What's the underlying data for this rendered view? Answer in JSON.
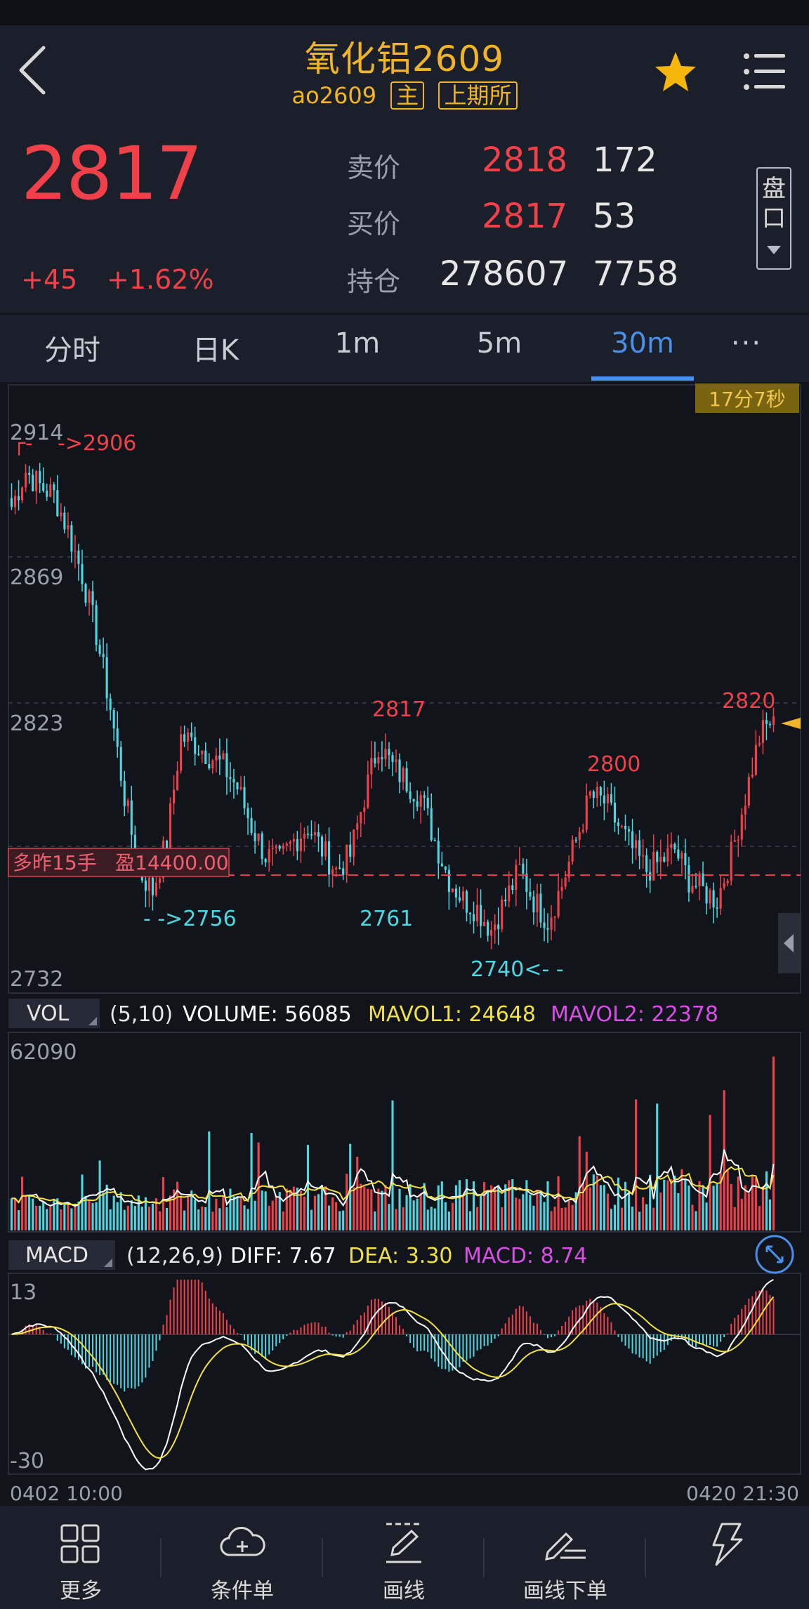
{
  "header": {
    "title": "氧化铝2609",
    "code": "ao2609",
    "tag_main": "主",
    "tag_exchange": "上期所"
  },
  "quote": {
    "last_price": "2817",
    "change": "+45",
    "change_pct": "+1.62%",
    "ask_label": "卖价",
    "ask_price": "2818",
    "ask_volume": "172",
    "bid_label": "买价",
    "bid_price": "2817",
    "bid_volume": "53",
    "oi_label": "持仓",
    "open_interest": "278607",
    "oi_change": "7758",
    "pankou_char1": "盘",
    "pankou_char2": "口"
  },
  "tabs": [
    {
      "label": "分时"
    },
    {
      "label": "日K"
    },
    {
      "label": "1m"
    },
    {
      "label": "5m"
    },
    {
      "label": "30m",
      "active": true
    },
    {
      "label": "···"
    }
  ],
  "kline": {
    "countdown": "17分7秒",
    "y_max_label": "2914",
    "y_mid1_label": "2869",
    "y_mid2_label": "2823",
    "y_min_label": "2732",
    "high_marker": "->2906",
    "low_marker_1": "- ->2756",
    "low_marker_2": "2761",
    "low_marker_3": "2740<- -",
    "peak_label_1": "2817",
    "peak_label_2": "2800",
    "peak_label_3": "2820",
    "position_label": "多昨15手",
    "position_pnl": "盈14400.00"
  },
  "volume": {
    "tab_label": "VOL",
    "params": "(5,10)",
    "volume_text": "VOLUME: 56085",
    "mavol1_text": "MAVOL1: 24648",
    "mavol2_text": "MAVOL2: 22378",
    "y_max_label": "62090"
  },
  "macd": {
    "tab_label": "MACD",
    "params": "(12,26,9)",
    "diff_text": "DIFF: 7.67",
    "dea_text": "DEA: 3.30",
    "macd_text": "MACD: 8.74",
    "y_max_label": "13",
    "y_min_label": "-30"
  },
  "time_axis": {
    "start": "0402 10:00",
    "end": "0420 21:30"
  },
  "bottom_nav": [
    {
      "label": "更多",
      "icon": "grid-icon"
    },
    {
      "label": "条件单",
      "icon": "cloud-plus-icon"
    },
    {
      "label": "画线",
      "icon": "pen-line-icon"
    },
    {
      "label": "画线下单",
      "icon": "pen-order-icon"
    },
    {
      "label": "闪电",
      "icon": "lightning-icon"
    }
  ],
  "colors": {
    "up": "#f0414b",
    "down": "#4fd6e0",
    "accent": "#4a90e8",
    "title": "#f0b429",
    "mavol1": "#f2e04b",
    "mavol2": "#d94fe6"
  },
  "chart_data": {
    "type": "candlestick",
    "interval": "30m",
    "symbol": "ao2609",
    "ylim": [
      2732,
      2914
    ],
    "close_path": [
      2888,
      2900,
      2895,
      2892,
      2880,
      2865,
      2845,
      2820,
      2790,
      2765,
      2758,
      2775,
      2810,
      2808,
      2804,
      2800,
      2793,
      2780,
      2770,
      2768,
      2775,
      2780,
      2772,
      2765,
      2770,
      2790,
      2808,
      2800,
      2795,
      2790,
      2775,
      2762,
      2755,
      2752,
      2745,
      2755,
      2765,
      2755,
      2748,
      2760,
      2775,
      2790,
      2788,
      2780,
      2772,
      2765,
      2768,
      2772,
      2762,
      2758,
      2755,
      2770,
      2790,
      2810,
      2817
    ],
    "high": 2906,
    "low": 2740,
    "last": 2817
  }
}
